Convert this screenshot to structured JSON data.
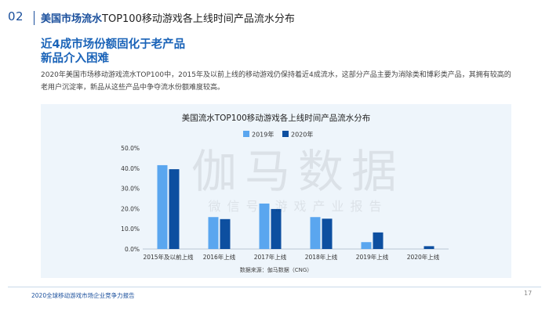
{
  "header": {
    "section_number": "02",
    "title_highlight": "美国市场流水",
    "title_rest": "TOP100移动游戏各上线时间产品流水分布"
  },
  "heading": {
    "line1": "近4成市场份额固化于老产品",
    "line2": "新品介入困难"
  },
  "body_text": "2020年美国市场移动游戏流水TOP100中，2015年及以前上线的移动游戏仍保持着近4成流水，这部分产品主要为消除类和博彩类产品，其拥有较高的老用户沉淀率，新品从这些产品中争夺流水份额难度较高。",
  "watermark": {
    "main": "伽马数据",
    "sub": "微信号 游戏产业报告"
  },
  "chart_data": {
    "type": "bar",
    "title": "美国流水TOP100移动游戏各上线时间产品流水分布",
    "categories": [
      "2015年及以前上线",
      "2016年上线",
      "2017年上线",
      "2018年上线",
      "2019年上线",
      "2020年上线"
    ],
    "series": [
      {
        "name": "2019年",
        "color": "#5aa6ef",
        "values": [
          41.5,
          15.8,
          22.5,
          15.8,
          3.4,
          0
        ]
      },
      {
        "name": "2020年",
        "color": "#0d4fa0",
        "values": [
          39.5,
          14.8,
          19.8,
          15.0,
          8.2,
          1.4
        ]
      }
    ],
    "yticks": [
      "0.0%",
      "10.0%",
      "20.0%",
      "30.0%",
      "40.0%",
      "50.0%"
    ],
    "ylim": [
      0,
      50
    ],
    "legend_position": "top-center",
    "grid": false,
    "source": "数据来源：伽马数据（CNG）"
  },
  "footer": {
    "report_title": "2020全球移动游戏市场企业竞争力报告",
    "page_number": "17"
  }
}
